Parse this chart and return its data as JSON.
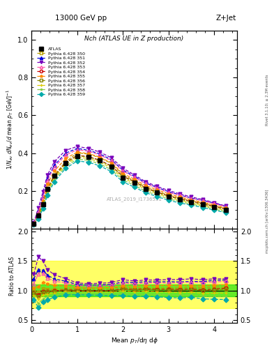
{
  "title_top": "13000 GeV pp",
  "title_right": "Z+Jet",
  "plot_title": "Nch (ATLAS UE in Z production)",
  "xlabel": "Mean $p_T$/d$\\eta$ d$\\phi$",
  "ylabel_main": "$1/N_{ev}$ $dN_{ev}/d$ mean $p_T$ [GeV]$^{-1}$",
  "ylabel_ratio": "Ratio to ATLAS",
  "watermark": "ATLAS_2019_I1736531",
  "rivet_text": "Rivet 3.1.10; ≥ 2.3M events",
  "inspire_text": "mcplots.cern.ch [arXiv:1306.3436]",
  "xlim": [
    0,
    4.5
  ],
  "ylim_main": [
    0,
    1.05
  ],
  "ylim_ratio": [
    0.45,
    2.05
  ],
  "ratio_yticks": [
    0.5,
    1.0,
    1.5,
    2.0
  ],
  "main_yticks": [
    0.2,
    0.4,
    0.6,
    0.8,
    1.0
  ],
  "atlas_x": [
    0.05,
    0.15,
    0.25,
    0.35,
    0.5,
    0.75,
    1.0,
    1.25,
    1.5,
    1.75,
    2.0,
    2.25,
    2.5,
    2.75,
    3.0,
    3.25,
    3.5,
    3.75,
    4.0,
    4.25
  ],
  "atlas_y": [
    0.025,
    0.07,
    0.13,
    0.21,
    0.28,
    0.345,
    0.385,
    0.38,
    0.36,
    0.33,
    0.27,
    0.245,
    0.21,
    0.19,
    0.17,
    0.155,
    0.14,
    0.13,
    0.115,
    0.1
  ],
  "mc_x": [
    0.05,
    0.15,
    0.25,
    0.35,
    0.5,
    0.75,
    1.0,
    1.25,
    1.5,
    1.75,
    2.0,
    2.25,
    2.5,
    2.75,
    3.0,
    3.25,
    3.5,
    3.75,
    4.0,
    4.25
  ],
  "mc_sets": {
    "350": {
      "color": "#b8a000",
      "linestyle": "--",
      "marker": "s",
      "markerfacecolor": "none",
      "label": "Pythia 6.428 350"
    },
    "351": {
      "color": "#0000dd",
      "linestyle": "--",
      "marker": "^",
      "markerfacecolor": "#0000dd",
      "label": "Pythia 6.428 351"
    },
    "352": {
      "color": "#7700bb",
      "linestyle": "--",
      "marker": "v",
      "markerfacecolor": "#7700bb",
      "label": "Pythia 6.428 352"
    },
    "353": {
      "color": "#ff55aa",
      "linestyle": "--",
      "marker": "^",
      "markerfacecolor": "none",
      "label": "Pythia 6.428 353"
    },
    "354": {
      "color": "#cc0000",
      "linestyle": "--",
      "marker": "o",
      "markerfacecolor": "none",
      "label": "Pythia 6.428 354"
    },
    "355": {
      "color": "#ff8800",
      "linestyle": "--",
      "marker": "*",
      "markerfacecolor": "#ff8800",
      "label": "Pythia 6.428 355"
    },
    "356": {
      "color": "#888800",
      "linestyle": "--",
      "marker": "s",
      "markerfacecolor": "none",
      "label": "Pythia 6.428 356"
    },
    "357": {
      "color": "#ddcc00",
      "linestyle": "--",
      "marker": "+",
      "markerfacecolor": "#ddcc00",
      "label": "Pythia 6.428 357"
    },
    "358": {
      "color": "#88cc44",
      "linestyle": "--",
      "marker": ".",
      "markerfacecolor": "#88cc44",
      "label": "Pythia 6.428 358"
    },
    "359": {
      "color": "#00aaaa",
      "linestyle": "--",
      "marker": "D",
      "markerfacecolor": "#00aaaa",
      "label": "Pythia 6.428 359"
    }
  },
  "mc_y_data": {
    "350": [
      0.025,
      0.068,
      0.135,
      0.215,
      0.285,
      0.355,
      0.4,
      0.395,
      0.375,
      0.345,
      0.285,
      0.255,
      0.22,
      0.198,
      0.178,
      0.162,
      0.148,
      0.136,
      0.122,
      0.106
    ],
    "351": [
      0.03,
      0.095,
      0.175,
      0.265,
      0.335,
      0.4,
      0.425,
      0.415,
      0.395,
      0.365,
      0.31,
      0.278,
      0.242,
      0.218,
      0.196,
      0.178,
      0.162,
      0.15,
      0.135,
      0.118
    ],
    "352": [
      0.032,
      0.11,
      0.195,
      0.285,
      0.355,
      0.415,
      0.435,
      0.425,
      0.405,
      0.375,
      0.32,
      0.285,
      0.248,
      0.224,
      0.202,
      0.184,
      0.168,
      0.154,
      0.138,
      0.12
    ],
    "353": [
      0.028,
      0.09,
      0.168,
      0.255,
      0.325,
      0.39,
      0.418,
      0.41,
      0.39,
      0.36,
      0.305,
      0.272,
      0.238,
      0.215,
      0.192,
      0.176,
      0.16,
      0.148,
      0.132,
      0.116
    ],
    "354": [
      0.024,
      0.065,
      0.128,
      0.208,
      0.278,
      0.35,
      0.388,
      0.382,
      0.362,
      0.332,
      0.278,
      0.25,
      0.216,
      0.194,
      0.174,
      0.158,
      0.144,
      0.132,
      0.118,
      0.104
    ],
    "355": [
      0.026,
      0.075,
      0.148,
      0.235,
      0.305,
      0.372,
      0.405,
      0.398,
      0.378,
      0.348,
      0.292,
      0.262,
      0.228,
      0.206,
      0.185,
      0.168,
      0.152,
      0.14,
      0.126,
      0.11
    ],
    "356": [
      0.024,
      0.063,
      0.126,
      0.206,
      0.276,
      0.348,
      0.386,
      0.38,
      0.36,
      0.33,
      0.276,
      0.248,
      0.214,
      0.192,
      0.172,
      0.156,
      0.142,
      0.13,
      0.116,
      0.102
    ],
    "357": [
      0.023,
      0.06,
      0.12,
      0.198,
      0.268,
      0.34,
      0.378,
      0.372,
      0.352,
      0.322,
      0.268,
      0.24,
      0.208,
      0.186,
      0.166,
      0.15,
      0.136,
      0.124,
      0.11,
      0.096
    ],
    "358": [
      0.022,
      0.055,
      0.112,
      0.188,
      0.258,
      0.33,
      0.368,
      0.362,
      0.342,
      0.312,
      0.258,
      0.23,
      0.198,
      0.178,
      0.158,
      0.143,
      0.13,
      0.118,
      0.104,
      0.09
    ],
    "359": [
      0.021,
      0.05,
      0.105,
      0.178,
      0.248,
      0.32,
      0.358,
      0.352,
      0.332,
      0.302,
      0.248,
      0.22,
      0.19,
      0.17,
      0.15,
      0.136,
      0.124,
      0.112,
      0.098,
      0.085
    ]
  },
  "band_yellow_color": "#ffff00",
  "band_yellow_alpha": 0.6,
  "band_green_color": "#00dd00",
  "band_green_alpha": 0.6,
  "band_yellow_low": 0.7,
  "band_yellow_high": 1.5,
  "band_green_low": 0.9,
  "band_green_high": 1.1,
  "background_color": "#ffffff"
}
